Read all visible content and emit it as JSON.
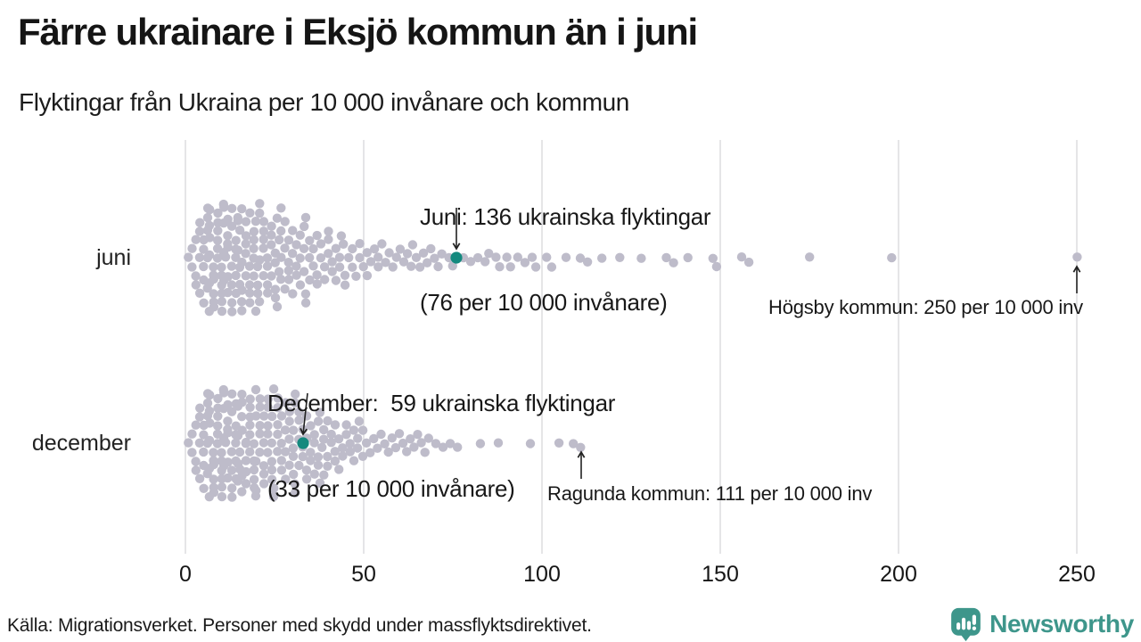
{
  "source": "Källa: Migrationsverket. Personer med skydd under massflyktsdirektivet.",
  "logo": {
    "brand": "Newsworthy"
  },
  "colors": {
    "background": "#ffffff",
    "dot_grey": "#bebcca",
    "highlight_teal": "#14897e",
    "brand_teal": "#3e968b",
    "gridline": "#d7d7da",
    "arrow": "#222222",
    "text_dark": "#1a1a1a"
  },
  "chart_data": {
    "type": "scatter",
    "variant": "beeswarm",
    "title": "Färre ukrainare i Eksjö kommun än i juni",
    "subtitle": "Flyktingar från Ukraina per 10 000 invånare och kommun",
    "xlabel": "",
    "ylabel": "",
    "xlim": [
      0,
      255
    ],
    "x_ticks": [
      0,
      50,
      100,
      150,
      200,
      250
    ],
    "grid": true,
    "legend": "none",
    "rows": [
      {
        "label": "juni",
        "highlight": {
          "value": 76
        },
        "callout": {
          "lines": [
            "Juni: 136 ukrainska flyktingar",
            "(76 per 10 000 invånare)"
          ],
          "target_value": 76
        },
        "outlier_callout": {
          "text": "Högsby kommun: 250 per 10 000 inv",
          "target_value": 250
        },
        "distribution": [
          [
            1,
            1
          ],
          [
            2,
            2
          ],
          [
            3,
            3
          ],
          [
            4,
            4
          ],
          [
            5,
            5
          ],
          [
            6,
            5
          ],
          [
            7,
            6
          ],
          [
            8,
            6
          ],
          [
            9,
            6
          ],
          [
            10,
            6
          ],
          [
            11,
            6
          ],
          [
            12,
            6
          ],
          [
            13,
            6
          ],
          [
            14,
            5
          ],
          [
            15,
            6
          ],
          [
            16,
            5
          ],
          [
            17,
            5
          ],
          [
            18,
            5
          ],
          [
            19,
            5
          ],
          [
            20,
            5
          ],
          [
            21,
            4
          ],
          [
            22,
            5
          ],
          [
            23,
            4
          ],
          [
            24,
            4
          ],
          [
            25,
            4
          ],
          [
            26,
            4
          ],
          [
            27,
            4
          ],
          [
            28,
            3
          ],
          [
            29,
            4
          ],
          [
            30,
            3
          ],
          [
            31,
            3
          ],
          [
            32,
            3
          ],
          [
            33,
            3
          ],
          [
            34,
            3
          ],
          [
            35,
            3
          ],
          [
            36,
            2
          ],
          [
            37,
            3
          ],
          [
            38,
            2
          ],
          [
            39,
            2
          ],
          [
            40,
            3
          ],
          [
            41,
            2
          ],
          [
            42,
            2
          ],
          [
            43,
            2
          ],
          [
            44,
            2
          ],
          [
            45,
            2
          ],
          [
            46,
            1
          ],
          [
            47,
            2
          ],
          [
            48,
            1
          ],
          [
            49,
            2
          ],
          [
            50,
            1
          ],
          [
            51,
            2
          ],
          [
            52,
            1
          ],
          [
            53,
            1
          ],
          [
            54,
            2
          ],
          [
            55,
            1
          ],
          [
            56,
            1
          ],
          [
            57,
            1
          ],
          [
            58,
            1
          ],
          [
            59,
            1
          ],
          [
            60,
            1
          ],
          [
            61,
            1
          ],
          [
            62,
            1
          ],
          [
            63,
            1
          ],
          [
            64,
            1
          ],
          [
            65,
            1
          ],
          [
            66,
            1
          ],
          [
            67,
            1
          ],
          [
            68,
            1
          ],
          [
            69,
            1
          ],
          [
            70,
            1
          ],
          [
            71,
            1
          ],
          [
            72,
            1
          ],
          [
            74,
            1
          ],
          [
            75,
            1
          ],
          [
            78,
            1
          ],
          [
            80,
            1
          ],
          [
            82,
            1
          ],
          [
            84,
            1
          ],
          [
            85,
            1
          ],
          [
            87,
            1
          ],
          [
            88,
            1
          ],
          [
            90,
            1
          ],
          [
            91,
            1
          ],
          [
            93,
            1
          ],
          [
            95,
            1
          ],
          [
            97,
            1
          ],
          [
            98,
            1
          ],
          [
            101,
            1
          ],
          [
            103,
            1
          ],
          [
            107,
            1
          ],
          [
            111,
            1
          ],
          [
            113,
            1
          ],
          [
            117,
            1
          ],
          [
            122,
            1
          ],
          [
            128,
            1
          ],
          [
            135,
            1
          ],
          [
            137,
            1
          ],
          [
            141,
            1
          ],
          [
            148,
            1
          ],
          [
            149,
            1
          ],
          [
            156,
            1
          ],
          [
            158,
            1
          ],
          [
            175,
            1
          ],
          [
            198,
            1
          ],
          [
            250,
            1
          ]
        ]
      },
      {
        "label": "december",
        "highlight": {
          "value": 33
        },
        "callout": {
          "lines": [
            "December:  59 ukrainska flyktingar",
            "(33 per 10 000 invånare)"
          ],
          "target_value": 33
        },
        "outlier_callout": {
          "text": "Ragunda kommun: 111 per 10 000 inv",
          "target_value": 111
        },
        "distribution": [
          [
            1,
            1
          ],
          [
            2,
            2
          ],
          [
            3,
            3
          ],
          [
            4,
            4
          ],
          [
            5,
            5
          ],
          [
            6,
            5
          ],
          [
            7,
            6
          ],
          [
            8,
            6
          ],
          [
            9,
            6
          ],
          [
            10,
            6
          ],
          [
            11,
            6
          ],
          [
            12,
            6
          ],
          [
            13,
            6
          ],
          [
            14,
            6
          ],
          [
            15,
            6
          ],
          [
            16,
            6
          ],
          [
            17,
            5
          ],
          [
            18,
            6
          ],
          [
            19,
            5
          ],
          [
            20,
            5
          ],
          [
            21,
            5
          ],
          [
            22,
            5
          ],
          [
            23,
            5
          ],
          [
            24,
            5
          ],
          [
            25,
            4
          ],
          [
            26,
            5
          ],
          [
            27,
            4
          ],
          [
            28,
            4
          ],
          [
            29,
            4
          ],
          [
            30,
            4
          ],
          [
            31,
            4
          ],
          [
            32,
            4
          ],
          [
            33,
            3
          ],
          [
            34,
            4
          ],
          [
            35,
            3
          ],
          [
            36,
            3
          ],
          [
            37,
            3
          ],
          [
            38,
            3
          ],
          [
            39,
            3
          ],
          [
            40,
            3
          ],
          [
            41,
            2
          ],
          [
            42,
            3
          ],
          [
            43,
            2
          ],
          [
            44,
            2
          ],
          [
            45,
            2
          ],
          [
            46,
            2
          ],
          [
            47,
            2
          ],
          [
            48,
            2
          ],
          [
            49,
            1
          ],
          [
            50,
            2
          ],
          [
            51,
            1
          ],
          [
            52,
            1
          ],
          [
            53,
            1
          ],
          [
            54,
            1
          ],
          [
            55,
            1
          ],
          [
            56,
            1
          ],
          [
            57,
            1
          ],
          [
            58,
            1
          ],
          [
            59,
            1
          ],
          [
            60,
            1
          ],
          [
            61,
            1
          ],
          [
            62,
            1
          ],
          [
            63,
            1
          ],
          [
            64,
            1
          ],
          [
            65,
            1
          ],
          [
            66,
            1
          ],
          [
            67,
            1
          ],
          [
            68,
            1
          ],
          [
            70,
            1
          ],
          [
            72,
            1
          ],
          [
            74,
            1
          ],
          [
            76,
            1
          ],
          [
            83,
            1
          ],
          [
            88,
            1
          ],
          [
            97,
            1
          ],
          [
            105,
            1
          ],
          [
            109,
            1
          ],
          [
            111,
            1
          ]
        ]
      }
    ]
  }
}
